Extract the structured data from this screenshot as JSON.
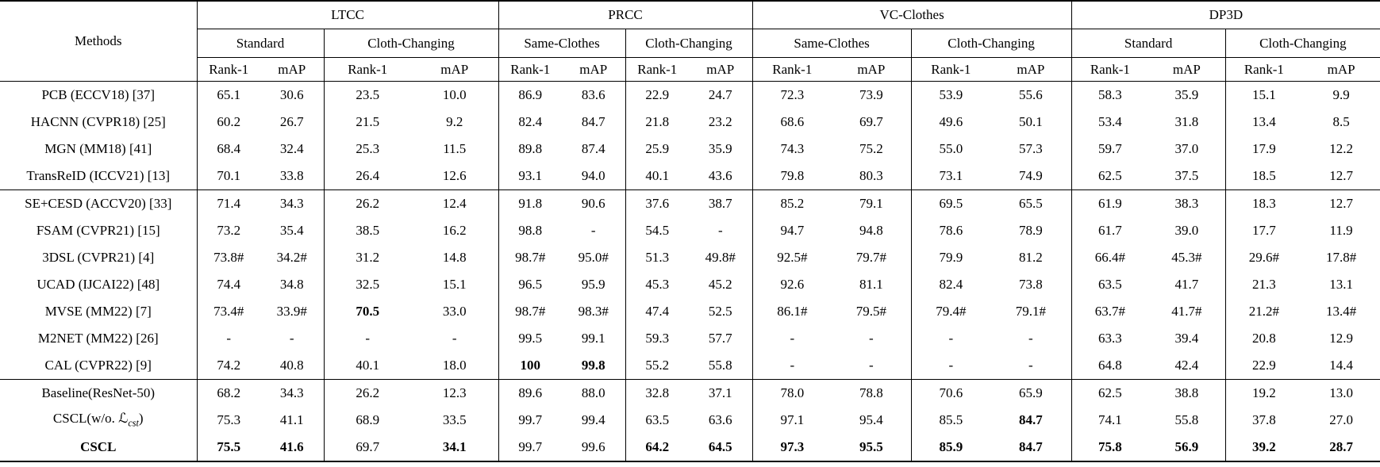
{
  "table": {
    "methods_header": "Methods",
    "metric_labels": [
      "Rank-1",
      "mAP"
    ],
    "groups": [
      {
        "label": "LTCC",
        "subs": [
          "Standard",
          "Cloth-Changing"
        ]
      },
      {
        "label": "PRCC",
        "subs": [
          "Same-Clothes",
          "Cloth-Changing"
        ]
      },
      {
        "label": "VC-Clothes",
        "subs": [
          "Same-Clothes",
          "Cloth-Changing"
        ]
      },
      {
        "label": "DP3D",
        "subs": [
          "Standard",
          "Cloth-Changing"
        ]
      }
    ],
    "rows": [
      {
        "label": "PCB (ECCV18) [37]",
        "values": [
          "65.1",
          "30.6",
          "23.5",
          "10.0",
          "86.9",
          "83.6",
          "22.9",
          "24.7",
          "72.3",
          "73.9",
          "53.9",
          "55.6",
          "58.3",
          "35.9",
          "15.1",
          "9.9"
        ],
        "bold": []
      },
      {
        "label": "HACNN (CVPR18) [25]",
        "values": [
          "60.2",
          "26.7",
          "21.5",
          "9.2",
          "82.4",
          "84.7",
          "21.8",
          "23.2",
          "68.6",
          "69.7",
          "49.6",
          "50.1",
          "53.4",
          "31.8",
          "13.4",
          "8.5"
        ],
        "bold": []
      },
      {
        "label": "MGN (MM18) [41]",
        "values": [
          "68.4",
          "32.4",
          "25.3",
          "11.5",
          "89.8",
          "87.4",
          "25.9",
          "35.9",
          "74.3",
          "75.2",
          "55.0",
          "57.3",
          "59.7",
          "37.0",
          "17.9",
          "12.2"
        ],
        "bold": []
      },
      {
        "label": "TransReID (ICCV21) [13]",
        "values": [
          "70.1",
          "33.8",
          "26.4",
          "12.6",
          "93.1",
          "94.0",
          "40.1",
          "43.6",
          "79.8",
          "80.3",
          "73.1",
          "74.9",
          "62.5",
          "37.5",
          "18.5",
          "12.7"
        ],
        "bold": [],
        "rule_after": true
      },
      {
        "label": "SE+CESD (ACCV20) [33]",
        "values": [
          "71.4",
          "34.3",
          "26.2",
          "12.4",
          "91.8",
          "90.6",
          "37.6",
          "38.7",
          "85.2",
          "79.1",
          "69.5",
          "65.5",
          "61.9",
          "38.3",
          "18.3",
          "12.7"
        ],
        "bold": []
      },
      {
        "label": "FSAM (CVPR21) [15]",
        "values": [
          "73.2",
          "35.4",
          "38.5",
          "16.2",
          "98.8",
          "-",
          "54.5",
          "-",
          "94.7",
          "94.8",
          "78.6",
          "78.9",
          "61.7",
          "39.0",
          "17.7",
          "11.9"
        ],
        "bold": []
      },
      {
        "label": "3DSL (CVPR21) [4]",
        "values": [
          "73.8#",
          "34.2#",
          "31.2",
          "14.8",
          "98.7#",
          "95.0#",
          "51.3",
          "49.8#",
          "92.5#",
          "79.7#",
          "79.9",
          "81.2",
          "66.4#",
          "45.3#",
          "29.6#",
          "17.8#"
        ],
        "bold": []
      },
      {
        "label": "UCAD (IJCAI22) [48]",
        "values": [
          "74.4",
          "34.8",
          "32.5",
          "15.1",
          "96.5",
          "95.9",
          "45.3",
          "45.2",
          "92.6",
          "81.1",
          "82.4",
          "73.8",
          "63.5",
          "41.7",
          "21.3",
          "13.1"
        ],
        "bold": []
      },
      {
        "label": "MVSE (MM22) [7]",
        "values": [
          "73.4#",
          "33.9#",
          "70.5",
          "33.0",
          "98.7#",
          "98.3#",
          "47.4",
          "52.5",
          "86.1#",
          "79.5#",
          "79.4#",
          "79.1#",
          "63.7#",
          "41.7#",
          "21.2#",
          "13.4#"
        ],
        "bold": [
          2
        ]
      },
      {
        "label": "M2NET (MM22) [26]",
        "values": [
          "-",
          "-",
          "-",
          "-",
          "99.5",
          "99.1",
          "59.3",
          "57.7",
          "-",
          "-",
          "-",
          "-",
          "63.3",
          "39.4",
          "20.8",
          "12.9"
        ],
        "bold": []
      },
      {
        "label": "CAL (CVPR22) [9]",
        "values": [
          "74.2",
          "40.8",
          "40.1",
          "18.0",
          "100",
          "99.8",
          "55.2",
          "55.8",
          "-",
          "-",
          "-",
          "-",
          "64.8",
          "42.4",
          "22.9",
          "14.4"
        ],
        "bold": [
          4,
          5
        ],
        "rule_after": true
      },
      {
        "label": "Baseline(ResNet-50)",
        "values": [
          "68.2",
          "34.3",
          "26.2",
          "12.3",
          "89.6",
          "88.0",
          "32.8",
          "37.1",
          "78.0",
          "78.8",
          "70.6",
          "65.9",
          "62.5",
          "38.8",
          "19.2",
          "13.0"
        ],
        "bold": []
      },
      {
        "label": "CSCL(w/o. ℒ~cst~)",
        "values": [
          "75.3",
          "41.1",
          "68.9",
          "33.5",
          "99.7",
          "99.4",
          "63.5",
          "63.6",
          "97.1",
          "95.4",
          "85.5",
          "84.7",
          "74.1",
          "55.8",
          "37.8",
          "27.0"
        ],
        "bold": [
          11
        ]
      },
      {
        "label": "CSCL",
        "label_bold": true,
        "values": [
          "75.5",
          "41.6",
          "69.7",
          "34.1",
          "99.7",
          "99.6",
          "64.2",
          "64.5",
          "97.3",
          "95.5",
          "85.9",
          "84.7",
          "75.8",
          "56.9",
          "39.2",
          "28.7"
        ],
        "bold": [
          0,
          1,
          3,
          6,
          7,
          8,
          9,
          10,
          11,
          12,
          13,
          14,
          15
        ]
      }
    ]
  }
}
